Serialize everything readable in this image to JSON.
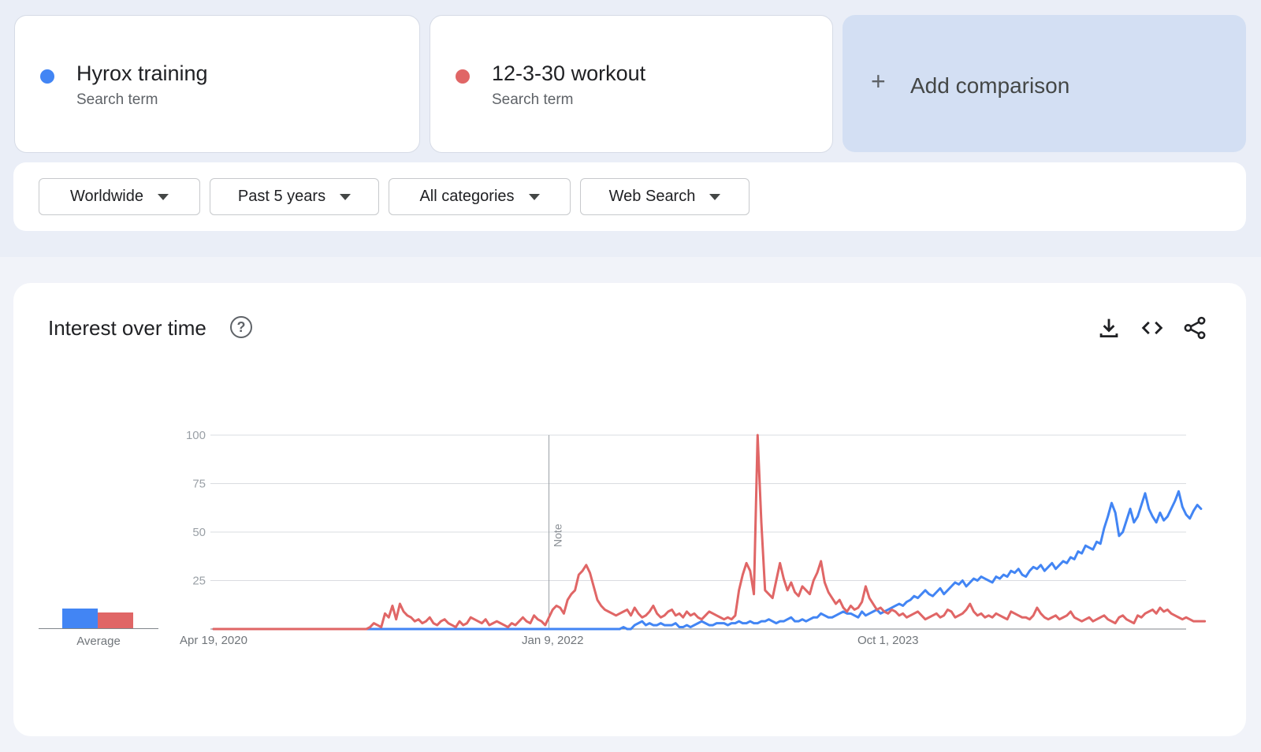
{
  "terms": [
    {
      "name": "Hyrox training",
      "type": "Search term",
      "color": "#4285f4"
    },
    {
      "name": "12-3-30 workout",
      "type": "Search term",
      "color": "#e06666"
    }
  ],
  "add_comparison": {
    "icon": "plus-icon",
    "label": "Add comparison"
  },
  "filters": {
    "region": "Worldwide",
    "time_range": "Past 5 years",
    "category": "All categories",
    "search_type": "Web Search"
  },
  "chart_panel": {
    "title": "Interest over time",
    "icons": [
      "help-icon",
      "download-icon",
      "embed-code-icon",
      "share-icon"
    ],
    "average_label": "Average",
    "averages": [
      10,
      8
    ]
  },
  "chart_data": {
    "type": "line",
    "xlabel": "",
    "ylabel": "",
    "ylim": [
      0,
      100
    ],
    "y_ticks": [
      "100",
      "75",
      "50",
      "25"
    ],
    "x_tick_labels": [
      "Apr 19, 2020",
      "Jan 9, 2022",
      "Oct 1, 2023"
    ],
    "annotation": "Note",
    "annotation_week": 90,
    "grid": true,
    "legend": "none",
    "weeks_total": 262,
    "series": [
      {
        "name": "Hyrox training",
        "color": "#4285f4",
        "values": [
          0,
          0,
          0,
          0,
          0,
          0,
          0,
          0,
          0,
          0,
          0,
          0,
          0,
          0,
          0,
          0,
          0,
          0,
          0,
          0,
          0,
          0,
          0,
          0,
          0,
          0,
          0,
          0,
          0,
          0,
          0,
          0,
          0,
          0,
          0,
          0,
          0,
          0,
          0,
          0,
          0,
          0,
          0,
          0,
          0,
          0,
          0,
          0,
          0,
          0,
          0,
          0,
          0,
          0,
          0,
          0,
          0,
          0,
          0,
          0,
          0,
          0,
          0,
          0,
          0,
          0,
          0,
          0,
          0,
          0,
          0,
          0,
          0,
          0,
          0,
          0,
          0,
          0,
          0,
          0,
          0,
          0,
          0,
          0,
          0,
          0,
          0,
          0,
          0,
          0,
          0,
          0,
          0,
          0,
          0,
          0,
          0,
          0,
          0,
          0,
          0,
          0,
          0,
          0,
          0,
          0,
          0,
          0,
          0,
          0,
          1,
          0,
          0,
          2,
          3,
          4,
          2,
          3,
          2,
          2,
          3,
          2,
          2,
          2,
          3,
          1,
          1,
          2,
          1,
          2,
          3,
          4,
          3,
          2,
          2,
          3,
          3,
          3,
          2,
          3,
          3,
          4,
          3,
          3,
          4,
          3,
          3,
          4,
          4,
          5,
          4,
          3,
          4,
          4,
          5,
          6,
          4,
          4,
          5,
          4,
          5,
          6,
          6,
          8,
          7,
          6,
          6,
          7,
          8,
          9,
          8,
          8,
          7,
          6,
          9,
          7,
          8,
          9,
          10,
          8,
          9,
          10,
          11,
          12,
          13,
          12,
          14,
          15,
          17,
          16,
          18,
          20,
          18,
          17,
          19,
          21,
          18,
          20,
          22,
          24,
          23,
          25,
          22,
          24,
          26,
          25,
          27,
          26,
          25,
          24,
          27,
          26,
          28,
          27,
          30,
          29,
          31,
          28,
          27,
          30,
          32,
          31,
          33,
          30,
          32,
          34,
          31,
          33,
          35,
          34,
          37,
          36,
          40,
          39,
          43,
          42,
          41,
          45,
          44,
          52,
          58,
          65,
          60,
          48,
          50,
          56,
          62,
          55,
          58,
          64,
          70,
          62,
          58,
          55,
          60,
          56,
          58,
          62,
          66,
          71,
          63,
          59,
          57,
          61,
          64,
          62
        ]
      },
      {
        "name": "12-3-30 workout",
        "color": "#e06666",
        "values": [
          0,
          0,
          0,
          0,
          0,
          0,
          0,
          0,
          0,
          0,
          0,
          0,
          0,
          0,
          0,
          0,
          0,
          0,
          0,
          0,
          0,
          0,
          0,
          0,
          0,
          0,
          0,
          0,
          0,
          0,
          0,
          0,
          0,
          0,
          0,
          0,
          0,
          0,
          0,
          0,
          0,
          0,
          1,
          3,
          2,
          1,
          8,
          6,
          12,
          5,
          13,
          9,
          7,
          6,
          4,
          5,
          3,
          4,
          6,
          3,
          2,
          4,
          5,
          3,
          2,
          1,
          4,
          2,
          3,
          6,
          5,
          4,
          3,
          5,
          2,
          3,
          4,
          3,
          2,
          1,
          3,
          2,
          4,
          6,
          4,
          3,
          7,
          5,
          4,
          2,
          6,
          10,
          12,
          11,
          8,
          15,
          18,
          20,
          28,
          30,
          33,
          29,
          22,
          15,
          12,
          10,
          9,
          8,
          7,
          8,
          9,
          10,
          7,
          11,
          8,
          6,
          7,
          9,
          12,
          8,
          6,
          7,
          9,
          10,
          7,
          8,
          6,
          9,
          7,
          8,
          6,
          5,
          7,
          9,
          8,
          7,
          6,
          5,
          6,
          5,
          7,
          20,
          28,
          34,
          30,
          18,
          100,
          55,
          20,
          18,
          16,
          25,
          34,
          26,
          20,
          24,
          19,
          17,
          22,
          20,
          18,
          25,
          29,
          35,
          24,
          19,
          16,
          13,
          15,
          11,
          9,
          12,
          10,
          11,
          14,
          22,
          16,
          13,
          10,
          11,
          9,
          8,
          10,
          9,
          7,
          8,
          6,
          7,
          8,
          9,
          7,
          5,
          6,
          7,
          8,
          6,
          7,
          10,
          9,
          6,
          7,
          8,
          10,
          13,
          9,
          7,
          8,
          6,
          7,
          6,
          8,
          7,
          6,
          5,
          9,
          8,
          7,
          6,
          6,
          5,
          7,
          11,
          8,
          6,
          5,
          6,
          7,
          5,
          6,
          7,
          9,
          6,
          5,
          4,
          5,
          6,
          4,
          5,
          6,
          7,
          5,
          4,
          3,
          6,
          7,
          5,
          4,
          3,
          7,
          6,
          8,
          9,
          10,
          8,
          11,
          9,
          10,
          8,
          7,
          6,
          5,
          6,
          5,
          4,
          4,
          4,
          4
        ]
      }
    ]
  }
}
